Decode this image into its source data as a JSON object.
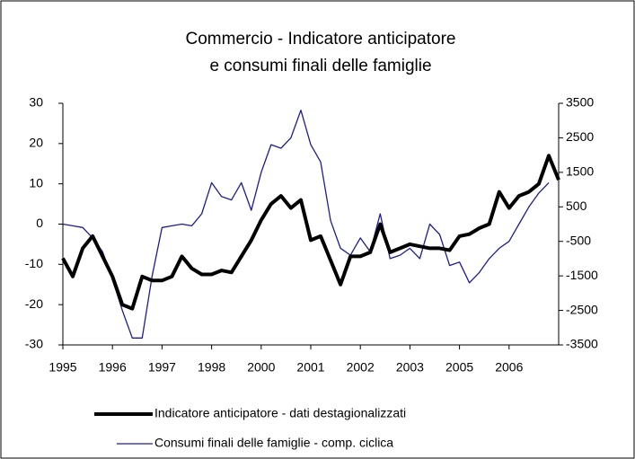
{
  "chart_data": {
    "type": "line",
    "title": [
      "Commercio - Indicatore anticipatore",
      "e consumi finali delle famiglie"
    ],
    "categories": [
      "1995",
      null,
      null,
      null,
      null,
      "1996",
      null,
      null,
      null,
      null,
      "1997",
      null,
      null,
      null,
      null,
      "1998",
      null,
      null,
      null,
      null,
      "2000",
      null,
      null,
      null,
      null,
      "2001",
      null,
      null,
      null,
      null,
      "2002",
      null,
      null,
      null,
      null,
      "2003",
      null,
      null,
      null,
      null,
      "2005",
      null,
      null,
      null,
      null,
      "2006",
      null,
      null,
      null,
      null,
      null
    ],
    "ylim": [
      -30,
      30
    ],
    "yticks": [
      -30,
      -20,
      -10,
      0,
      10,
      20,
      30
    ],
    "y2lim": [
      -3500,
      3500
    ],
    "y2ticks": [
      -3500,
      -2500,
      -1500,
      -500,
      500,
      1500,
      2500,
      3500
    ],
    "grid": false,
    "legend": "bottom",
    "series": [
      {
        "name": "Indicatore anticipatore - dati destagionalizzati",
        "color": "#000000",
        "values": [
          -8.5,
          -13,
          -6,
          -3,
          -8,
          -13,
          -20,
          -21,
          -13,
          -14,
          -14,
          -13,
          -8,
          -11,
          -12.5,
          -12.5,
          -11.5,
          -12,
          -8,
          -4,
          1,
          5,
          7,
          4,
          6,
          -4,
          -3,
          -9,
          -15,
          -8,
          -8,
          -7,
          0,
          -7,
          -6,
          -5,
          -5.5,
          -6,
          -6,
          -6.5,
          -3,
          -2.5,
          -1,
          0,
          8,
          4,
          7,
          8,
          10,
          17,
          11
        ]
      },
      {
        "name": "Consumi finali delle famiglie - comp. ciclica",
        "color": "#1c1c96",
        "axis": "y2",
        "values": [
          0,
          -50,
          -100,
          -400,
          -800,
          -1600,
          -2500,
          -3300,
          -3300,
          -1500,
          -100,
          -50,
          0,
          -50,
          300,
          1200,
          800,
          700,
          1200,
          400,
          1500,
          2300,
          2200,
          2500,
          3300,
          2300,
          1800,
          100,
          -700,
          -900,
          -400,
          -800,
          300,
          -1000,
          -900,
          -700,
          -1000,
          0,
          -300,
          -1200,
          -1100,
          -1700,
          -1400,
          -1000,
          -700,
          -500,
          0,
          500,
          900,
          1200,
          null
        ]
      }
    ]
  }
}
